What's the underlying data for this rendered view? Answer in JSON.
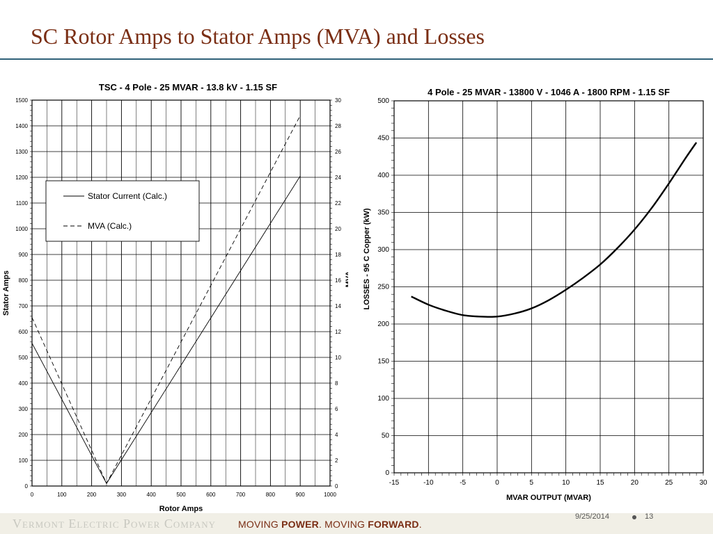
{
  "slide": {
    "title": "SC Rotor Amps to Stator Amps (MVA) and Losses",
    "company": "Vermont Electric Power Company",
    "tagline_parts": [
      "MOVING ",
      "POWER",
      ". MOVING ",
      "FORWARD",
      "."
    ],
    "date": "9/25/2014",
    "page_number": "13",
    "colors": {
      "title": "#7a2e14",
      "rule": "#2f6179",
      "footer_bg": "#f1efe6"
    }
  },
  "chart_data": [
    {
      "type": "line",
      "title": "TSC - 4 Pole - 25 MVAR - 13.8 kV - 1.15 SF",
      "xlabel": "Rotor Amps",
      "ylabel": "Stator Amps",
      "y2label": "MVA",
      "xlim": [
        0,
        1000
      ],
      "ylim": [
        0,
        1500
      ],
      "y2lim": [
        0,
        30
      ],
      "x_ticks": [
        "0",
        "100",
        "200",
        "300",
        "400",
        "500",
        "600",
        "700",
        "800",
        "900",
        "1000"
      ],
      "y_ticks": [
        "0",
        "100",
        "200",
        "300",
        "400",
        "500",
        "600",
        "700",
        "800",
        "900",
        "1000",
        "1100",
        "1200",
        "1300",
        "1400",
        "1500"
      ],
      "y2_ticks": [
        "0",
        "2",
        "4",
        "6",
        "8",
        "10",
        "12",
        "14",
        "16",
        "18",
        "20",
        "22",
        "24",
        "26",
        "28",
        "30"
      ],
      "grid": true,
      "legend_position": "upper-left",
      "series": [
        {
          "name": "Stator Current (Calc.)",
          "style": "solid",
          "axis": "left",
          "x": [
            0,
            250,
            900
          ],
          "y": [
            555,
            10,
            1205
          ]
        },
        {
          "name": "MVA (Calc.)",
          "style": "dashed",
          "axis": "right",
          "x": [
            0,
            250,
            900
          ],
          "y": [
            13.1,
            0.2,
            28.8
          ]
        }
      ]
    },
    {
      "type": "line",
      "title": "4 Pole - 25 MVAR - 13800 V - 1046 A - 1800 RPM - 1.15 SF",
      "xlabel": "MVAR OUTPUT (MVAR)",
      "ylabel": "LOSSES - 95 C Copper (kW)",
      "xlim": [
        -15,
        30
      ],
      "ylim": [
        0,
        500
      ],
      "x_ticks": [
        "-15",
        "-10",
        "-5",
        "0",
        "5",
        "10",
        "15",
        "20",
        "25",
        "30"
      ],
      "y_ticks": [
        "0",
        "50",
        "100",
        "150",
        "200",
        "250",
        "300",
        "350",
        "400",
        "450",
        "500"
      ],
      "grid": true,
      "series": [
        {
          "style": "solid",
          "x": [
            -12.5,
            -10,
            -7.5,
            -5,
            -2.5,
            0,
            2.5,
            5,
            7.5,
            10,
            12.5,
            15,
            17.5,
            20,
            22.5,
            25,
            27.5,
            29
          ],
          "y": [
            237,
            226,
            218,
            212,
            210,
            210,
            214,
            221,
            232,
            246,
            262,
            280,
            302,
            327,
            356,
            389,
            424,
            444
          ]
        }
      ]
    }
  ]
}
